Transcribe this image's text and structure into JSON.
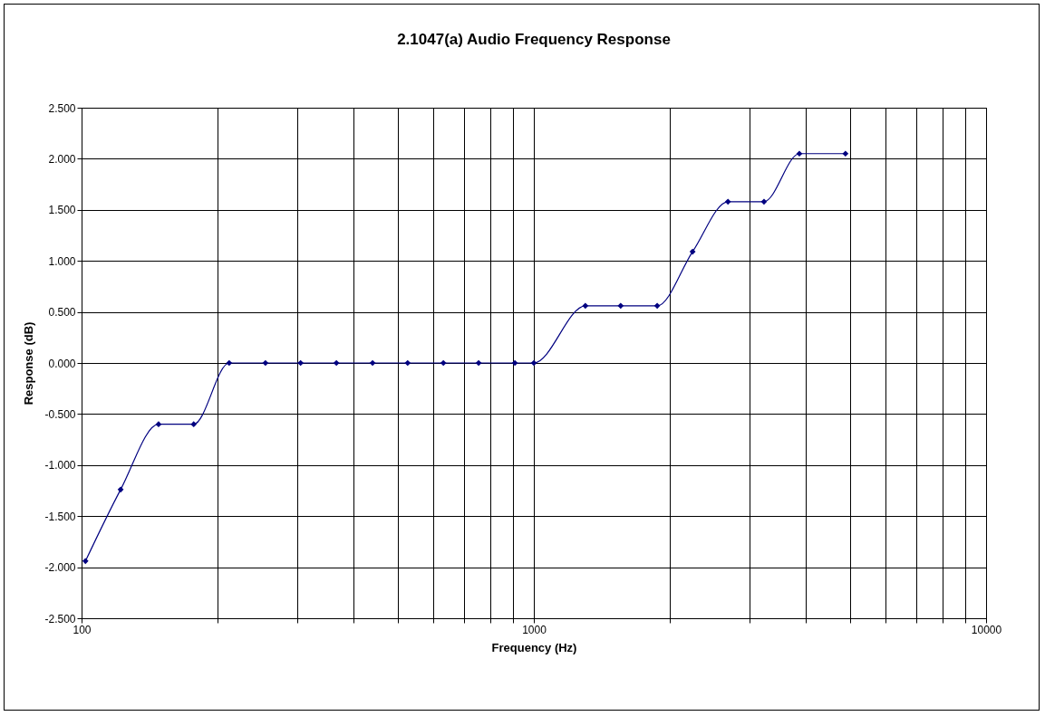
{
  "chart_data": {
    "type": "line",
    "title": "2.1047(a) Audio Frequency Response",
    "xlabel": "Frequency (Hz)",
    "ylabel": "Response (dB)",
    "x": [
      102,
      122,
      148,
      177,
      212,
      255,
      305,
      366,
      440,
      526,
      631,
      755,
      908,
      1000,
      1300,
      1556,
      1874,
      2244,
      2687,
      3228,
      3865,
      4887
    ],
    "series": [
      {
        "color": "#000080",
        "values": [
          -1.94,
          -1.24,
          -0.6,
          -0.6,
          0,
          0,
          0,
          0,
          0,
          0,
          0,
          0,
          0,
          0,
          0.56,
          0.56,
          0.56,
          1.09,
          1.58,
          1.58,
          2.05,
          2.05
        ]
      }
    ],
    "log": "x",
    "xlim": [
      100,
      10000
    ],
    "xticks": [
      100,
      {
        "value": 200,
        "label": null
      },
      {
        "value": 300,
        "label": null
      },
      {
        "value": 400,
        "label": null
      },
      {
        "value": 500,
        "label": null
      },
      {
        "value": 600,
        "label": null
      },
      {
        "value": 700,
        "label": null
      },
      {
        "value": 800,
        "label": null
      },
      {
        "value": 900,
        "label": null
      },
      1000,
      {
        "value": 2000,
        "label": null
      },
      {
        "value": 3000,
        "label": null
      },
      {
        "value": 4000,
        "label": null
      },
      {
        "value": 5000,
        "label": null
      },
      {
        "value": 6000,
        "label": null
      },
      {
        "value": 7000,
        "label": null
      },
      {
        "value": 8000,
        "label": null
      },
      {
        "value": 9000,
        "label": null
      },
      10000
    ],
    "ylim": [
      -2.5,
      2.5
    ],
    "yticks": [
      {
        "value": -2.5,
        "label": "-2.500"
      },
      {
        "value": -2,
        "label": "-2.000"
      },
      {
        "value": -1.5,
        "label": "-1.500"
      },
      {
        "value": -1,
        "label": "-1.000"
      },
      {
        "value": -0.5,
        "label": "-0.500"
      },
      {
        "value": 0,
        "label": "0.000"
      },
      {
        "value": 0.5,
        "label": "0.500"
      },
      {
        "value": 1,
        "label": "1.000"
      },
      {
        "value": 1.5,
        "label": "1.500"
      },
      {
        "value": 2,
        "label": "2.000"
      },
      {
        "value": 2.5,
        "label": "2.500"
      }
    ],
    "grid": true,
    "marker": "diamond",
    "line_style": "solid"
  }
}
